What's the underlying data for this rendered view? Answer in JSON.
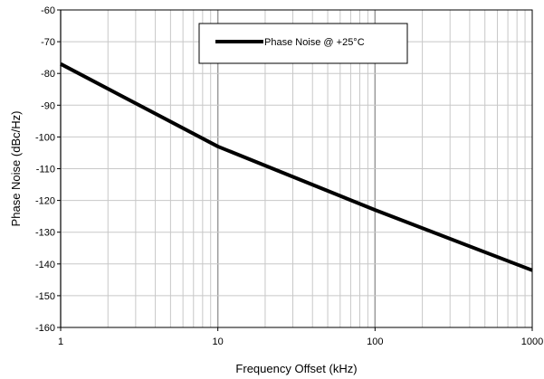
{
  "chart_data": {
    "type": "line",
    "xlabel": "Frequency Offset (kHz)",
    "ylabel": "Phase Noise (dBc/Hz)",
    "xscale": "log",
    "xlim": [
      1,
      1000
    ],
    "ylim": [
      -160,
      -60
    ],
    "xticks": [
      "1",
      "10",
      "100",
      "1000"
    ],
    "yticks": [
      "-60",
      "-70",
      "-80",
      "-90",
      "-100",
      "-110",
      "-120",
      "-130",
      "-140",
      "-150",
      "-160"
    ],
    "grid": true,
    "legend": "top-center",
    "series": [
      {
        "name": "Phase Noise @ +25°C",
        "color": "#000000",
        "x": [
          1,
          10,
          100,
          1000
        ],
        "y": [
          -77,
          -103,
          -123,
          -142
        ]
      }
    ]
  }
}
